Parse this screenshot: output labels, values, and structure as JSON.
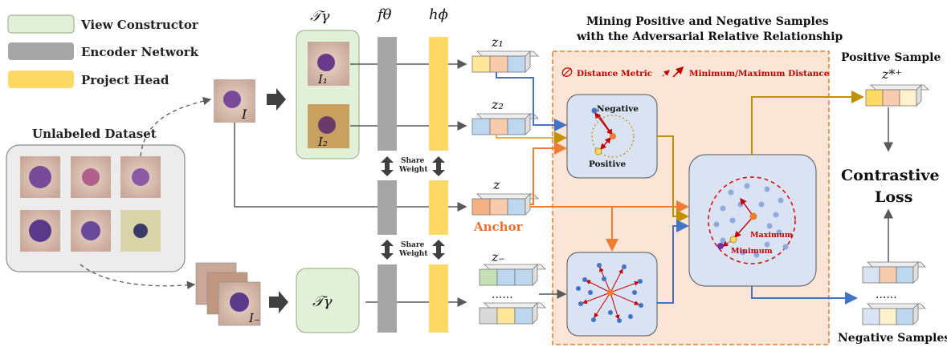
{
  "legend": {
    "view_constructor": "View Constructor",
    "encoder_network": "Encoder Network",
    "project_head": "Project Head"
  },
  "labels": {
    "unlabeled_dataset": "Unlabeled Dataset",
    "transform_top": "𝒯γ",
    "transform_bottom": "𝒯γ",
    "encoder_head": "fθ",
    "project_head_symbol": "hϕ",
    "share_weight_1": "Share",
    "share_weight_1b": "Weight",
    "share_weight_2": "Share",
    "share_weight_2b": "Weight",
    "image_I": "I",
    "image_I1": "I₁",
    "image_I2": "I₂",
    "image_Iminus": "I₋",
    "z1": "z₁",
    "z2": "z₂",
    "z": "z",
    "z_minus": "z₋",
    "anchor": "Anchor",
    "dots": "......",
    "mining_title_1": "Mining Positive and Negative Samples",
    "mining_title_2": "with the Adversarial Relative Relationship",
    "distance_metric": "Distance Metric",
    "min_max_distance": "Minimum/Maximum Distance",
    "negative": "Negative",
    "positive": "Positive",
    "maximum": "Maximum",
    "minimum": "Minimum",
    "positive_sample": "Positive Sample",
    "z_star_plus": "z*⁺",
    "contrastive_loss_1": "Contrastive",
    "contrastive_loss_2": "Loss",
    "negative_samples": "Negative Samples"
  },
  "colors": {
    "view_constructor": "#e2f0d9",
    "encoder": "#a6a6a6",
    "project_head": "#ffd966",
    "mining_bg": "#fbe5d6",
    "mining_border": "#e26b0a",
    "panel_bg": "#dae3f3",
    "anchor_text": "#e97132",
    "red": "#c00000",
    "blue_arrow": "#4472c4",
    "gold_arrow": "#bf9000",
    "orange_arrow": "#ed7d31",
    "vector_yellow": "#ffe699",
    "vector_pink": "#f8cbad",
    "vector_blue": "#bdd7ee",
    "vector_green": "#c5e0b4",
    "vector_grey": "#d9d9d9",
    "vector_orange": "#f4b183"
  }
}
